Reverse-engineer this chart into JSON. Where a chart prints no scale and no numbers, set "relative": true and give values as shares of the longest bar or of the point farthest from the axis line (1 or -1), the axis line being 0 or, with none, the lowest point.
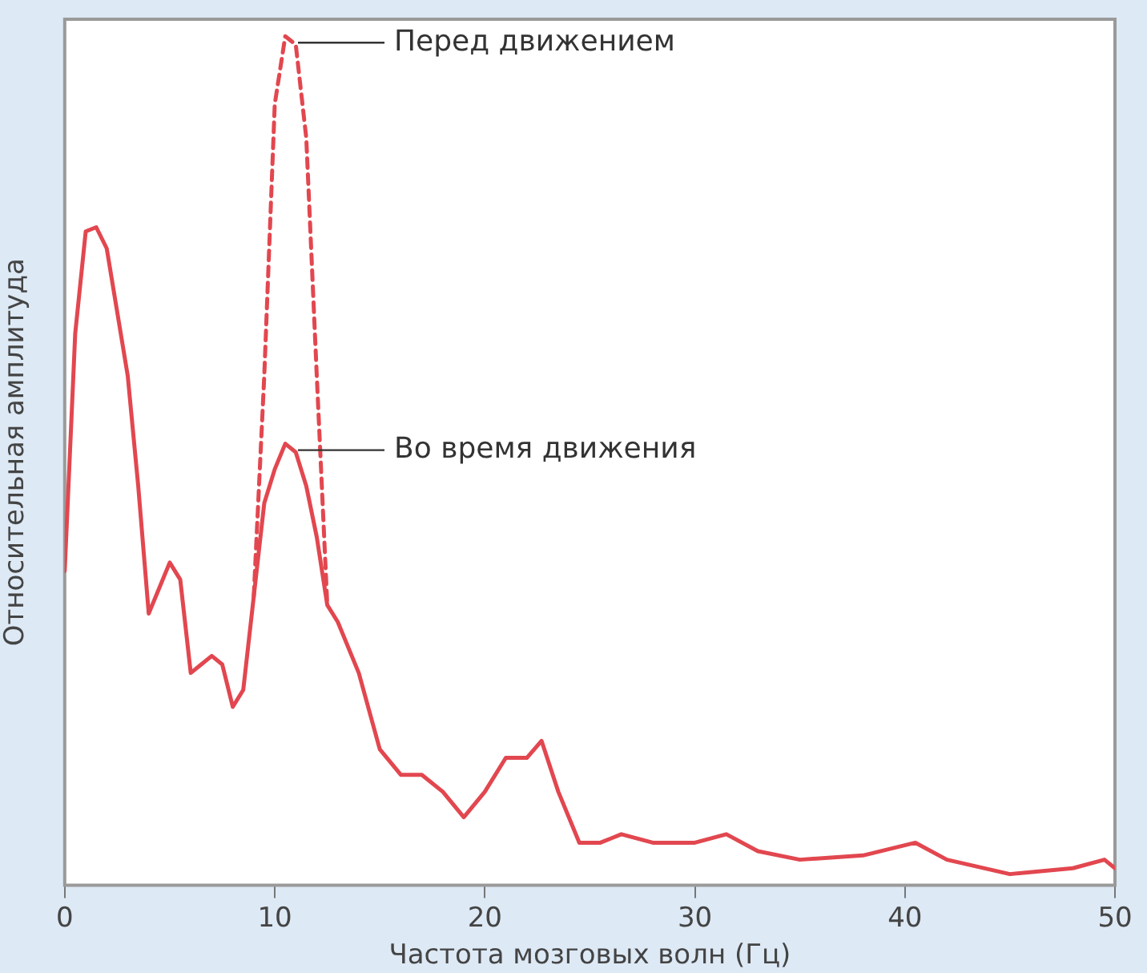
{
  "chart_data": {
    "type": "line",
    "xlabel": "Частота мозговых волн (Гц)",
    "ylabel": "Относительная амплитуда",
    "relative": true,
    "xlim": [
      0,
      50
    ],
    "xticks": [
      0,
      10,
      20,
      30,
      40,
      50
    ],
    "legend": false,
    "marker": "none",
    "series": [
      {
        "color": "#e2474f",
        "line_style": "solid",
        "x": [
          0,
          0.5,
          1,
          1.5,
          2,
          3,
          3.5,
          4,
          4.5,
          5,
          5.5,
          6,
          6.5,
          7,
          7.5,
          8,
          8.5,
          9,
          9.5,
          10,
          10.5,
          11,
          11.5,
          12,
          12.5,
          13,
          14,
          15,
          16,
          17,
          18,
          19,
          20,
          21,
          22,
          22.7,
          23.5,
          24.5,
          25.5,
          26.5,
          28,
          30,
          31.5,
          33,
          35,
          38,
          40.5,
          42,
          45,
          48,
          49.5,
          50
        ],
        "values": [
          0.37,
          0.65,
          0.77,
          0.775,
          0.75,
          0.6,
          0.47,
          0.32,
          0.35,
          0.38,
          0.36,
          0.25,
          0.26,
          0.27,
          0.26,
          0.21,
          0.23,
          0.34,
          0.45,
          0.49,
          0.52,
          0.51,
          0.47,
          0.41,
          0.33,
          0.31,
          0.25,
          0.16,
          0.13,
          0.13,
          0.11,
          0.08,
          0.11,
          0.15,
          0.15,
          0.17,
          0.11,
          0.05,
          0.05,
          0.06,
          0.05,
          0.05,
          0.06,
          0.04,
          0.03,
          0.035,
          0.05,
          0.03,
          0.013,
          0.02,
          0.03,
          0.02
        ]
      },
      {
        "color": "#e2474f",
        "line_style": "dashed",
        "x": [
          9,
          9.5,
          10,
          10.5,
          11,
          11.5,
          12,
          12.5
        ],
        "values": [
          0.34,
          0.6,
          0.92,
          1,
          0.99,
          0.88,
          0.6,
          0.33
        ]
      }
    ],
    "annotations": [
      {
        "text": "Перед движением",
        "x": 10.8,
        "y": 1
      },
      {
        "text": "Во время движения",
        "x": 10.8,
        "y": 0.52
      }
    ]
  }
}
